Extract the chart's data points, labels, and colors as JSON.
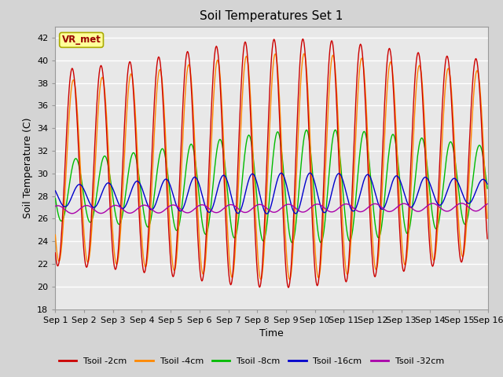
{
  "title": "Soil Temperatures Set 1",
  "xlabel": "Time",
  "ylabel": "Soil Temperature (C)",
  "ylim": [
    18,
    43
  ],
  "xlim": [
    0,
    15
  ],
  "fig_color": "#d4d4d4",
  "plot_bg": "#e8e8e8",
  "annotation_text": "VR_met",
  "annotation_bg": "#ffff99",
  "annotation_border": "#aaaa00",
  "legend_labels": [
    "Tsoil -2cm",
    "Tsoil -4cm",
    "Tsoil -8cm",
    "Tsoil -16cm",
    "Tsoil -32cm"
  ],
  "line_colors": [
    "#cc0000",
    "#ff8800",
    "#00bb00",
    "#0000cc",
    "#aa00aa"
  ],
  "xtick_labels": [
    "Sep 1",
    "Sep 2",
    "Sep 3",
    "Sep 4",
    "Sep 5",
    "Sep 6",
    "Sep 7",
    "Sep 8",
    "Sep 9",
    "Sep 10",
    "Sep 11",
    "Sep 12",
    "Sep 13",
    "Sep 14",
    "Sep 15",
    "Sep 16"
  ],
  "ytick_values": [
    18,
    20,
    22,
    24,
    26,
    28,
    30,
    32,
    34,
    36,
    38,
    40,
    42
  ]
}
